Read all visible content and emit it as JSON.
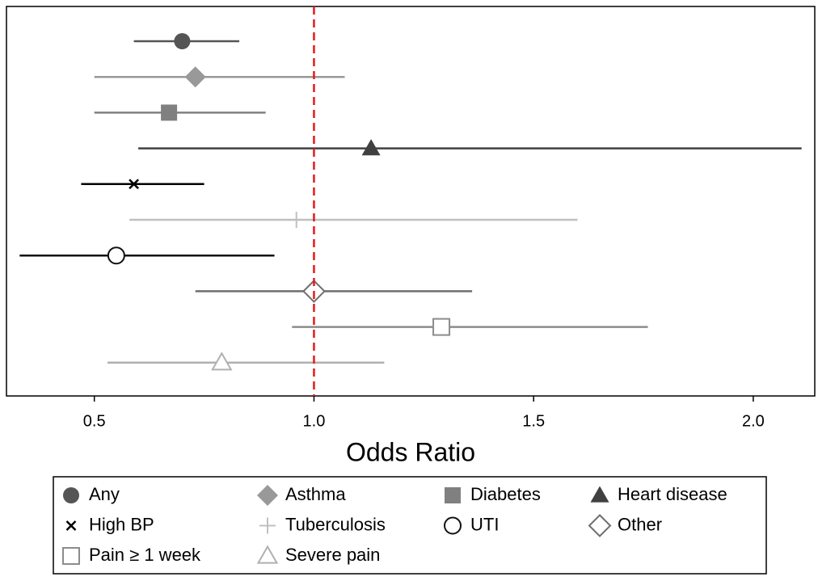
{
  "chart_data": {
    "type": "forest",
    "xlabel": "Odds Ratio",
    "xlim": [
      0.3,
      2.14
    ],
    "xticks": [
      0.5,
      {
        "value": 1,
        "label": "1.0"
      },
      1.5,
      {
        "value": 2,
        "label": "2.0"
      }
    ],
    "reference_line": {
      "value": 1,
      "color": "#e41a1c"
    },
    "series": [
      {
        "name": "Any",
        "color": "#555555",
        "marker": "circle",
        "value": 0.7,
        "ci": [
          0.59,
          0.83
        ]
      },
      {
        "name": "Asthma",
        "color": "#999999",
        "marker": "diamond",
        "value": 0.73,
        "ci": [
          0.5,
          1.07
        ]
      },
      {
        "name": "Diabetes",
        "color": "#808080",
        "marker": "square",
        "value": 0.67,
        "ci": [
          0.5,
          0.89
        ]
      },
      {
        "name": "Heart disease",
        "color": "#404040",
        "marker": "triangle",
        "value": 1.13,
        "ci": [
          0.6,
          2.11
        ]
      },
      {
        "name": "High BP",
        "color": "#000000",
        "marker": "x",
        "value": 0.59,
        "ci": [
          0.47,
          0.75
        ]
      },
      {
        "name": "Tuberculosis",
        "color": "#c0c0c0",
        "marker": "plus",
        "value": 0.96,
        "ci": [
          0.58,
          1.6
        ]
      },
      {
        "name": "UTI",
        "color": "#111111",
        "marker": "open-circle",
        "value": 0.55,
        "ci": [
          0.33,
          0.91
        ]
      },
      {
        "name": "Other",
        "color": "#6e6e6e",
        "marker": "open-diamond",
        "value": 1.0,
        "ci": [
          0.73,
          1.36
        ]
      },
      {
        "name": "Pain ≥ 1 week",
        "color": "#8c8c8c",
        "marker": "open-square",
        "value": 1.29,
        "ci": [
          0.95,
          1.76
        ]
      },
      {
        "name": "Severe pain",
        "color": "#b0b0b0",
        "marker": "open-triangle",
        "value": 0.79,
        "ci": [
          0.53,
          1.16
        ]
      }
    ]
  }
}
